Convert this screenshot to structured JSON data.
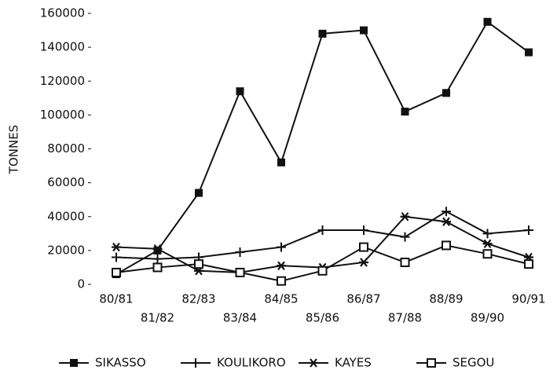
{
  "chart_data": {
    "type": "line",
    "y_label": "TONNES",
    "categories": [
      "80/81",
      "81/82",
      "82/83",
      "83/84",
      "84/85",
      "85/86",
      "86/87",
      "87/88",
      "88/89",
      "89/90",
      "90/91"
    ],
    "series": [
      {
        "name": "SIKASSO",
        "color": "#111111",
        "marker": "filled-square",
        "values": [
          6000,
          20000,
          54000,
          114000,
          72000,
          148000,
          150000,
          102000,
          113000,
          155000,
          137000
        ]
      },
      {
        "name": "KOULIKORO",
        "color": "#111111",
        "marker": "plus",
        "values": [
          16000,
          15000,
          16000,
          19000,
          22000,
          32000,
          32000,
          28000,
          43000,
          30000,
          32000
        ]
      },
      {
        "name": "KAYES",
        "color": "#111111",
        "marker": "star",
        "values": [
          22000,
          21000,
          8000,
          7000,
          11000,
          10000,
          13000,
          40000,
          37000,
          24000,
          16000
        ]
      },
      {
        "name": "SEGOU",
        "color": "#111111",
        "marker": "open-square",
        "values": [
          7000,
          10000,
          12000,
          7000,
          2000,
          8000,
          22000,
          13000,
          23000,
          18000,
          12000
        ]
      }
    ],
    "ylim": [
      0,
      160000
    ],
    "yticks": [
      0,
      20000,
      40000,
      60000,
      80000,
      100000,
      120000,
      140000,
      160000
    ],
    "legend": "bottom"
  }
}
